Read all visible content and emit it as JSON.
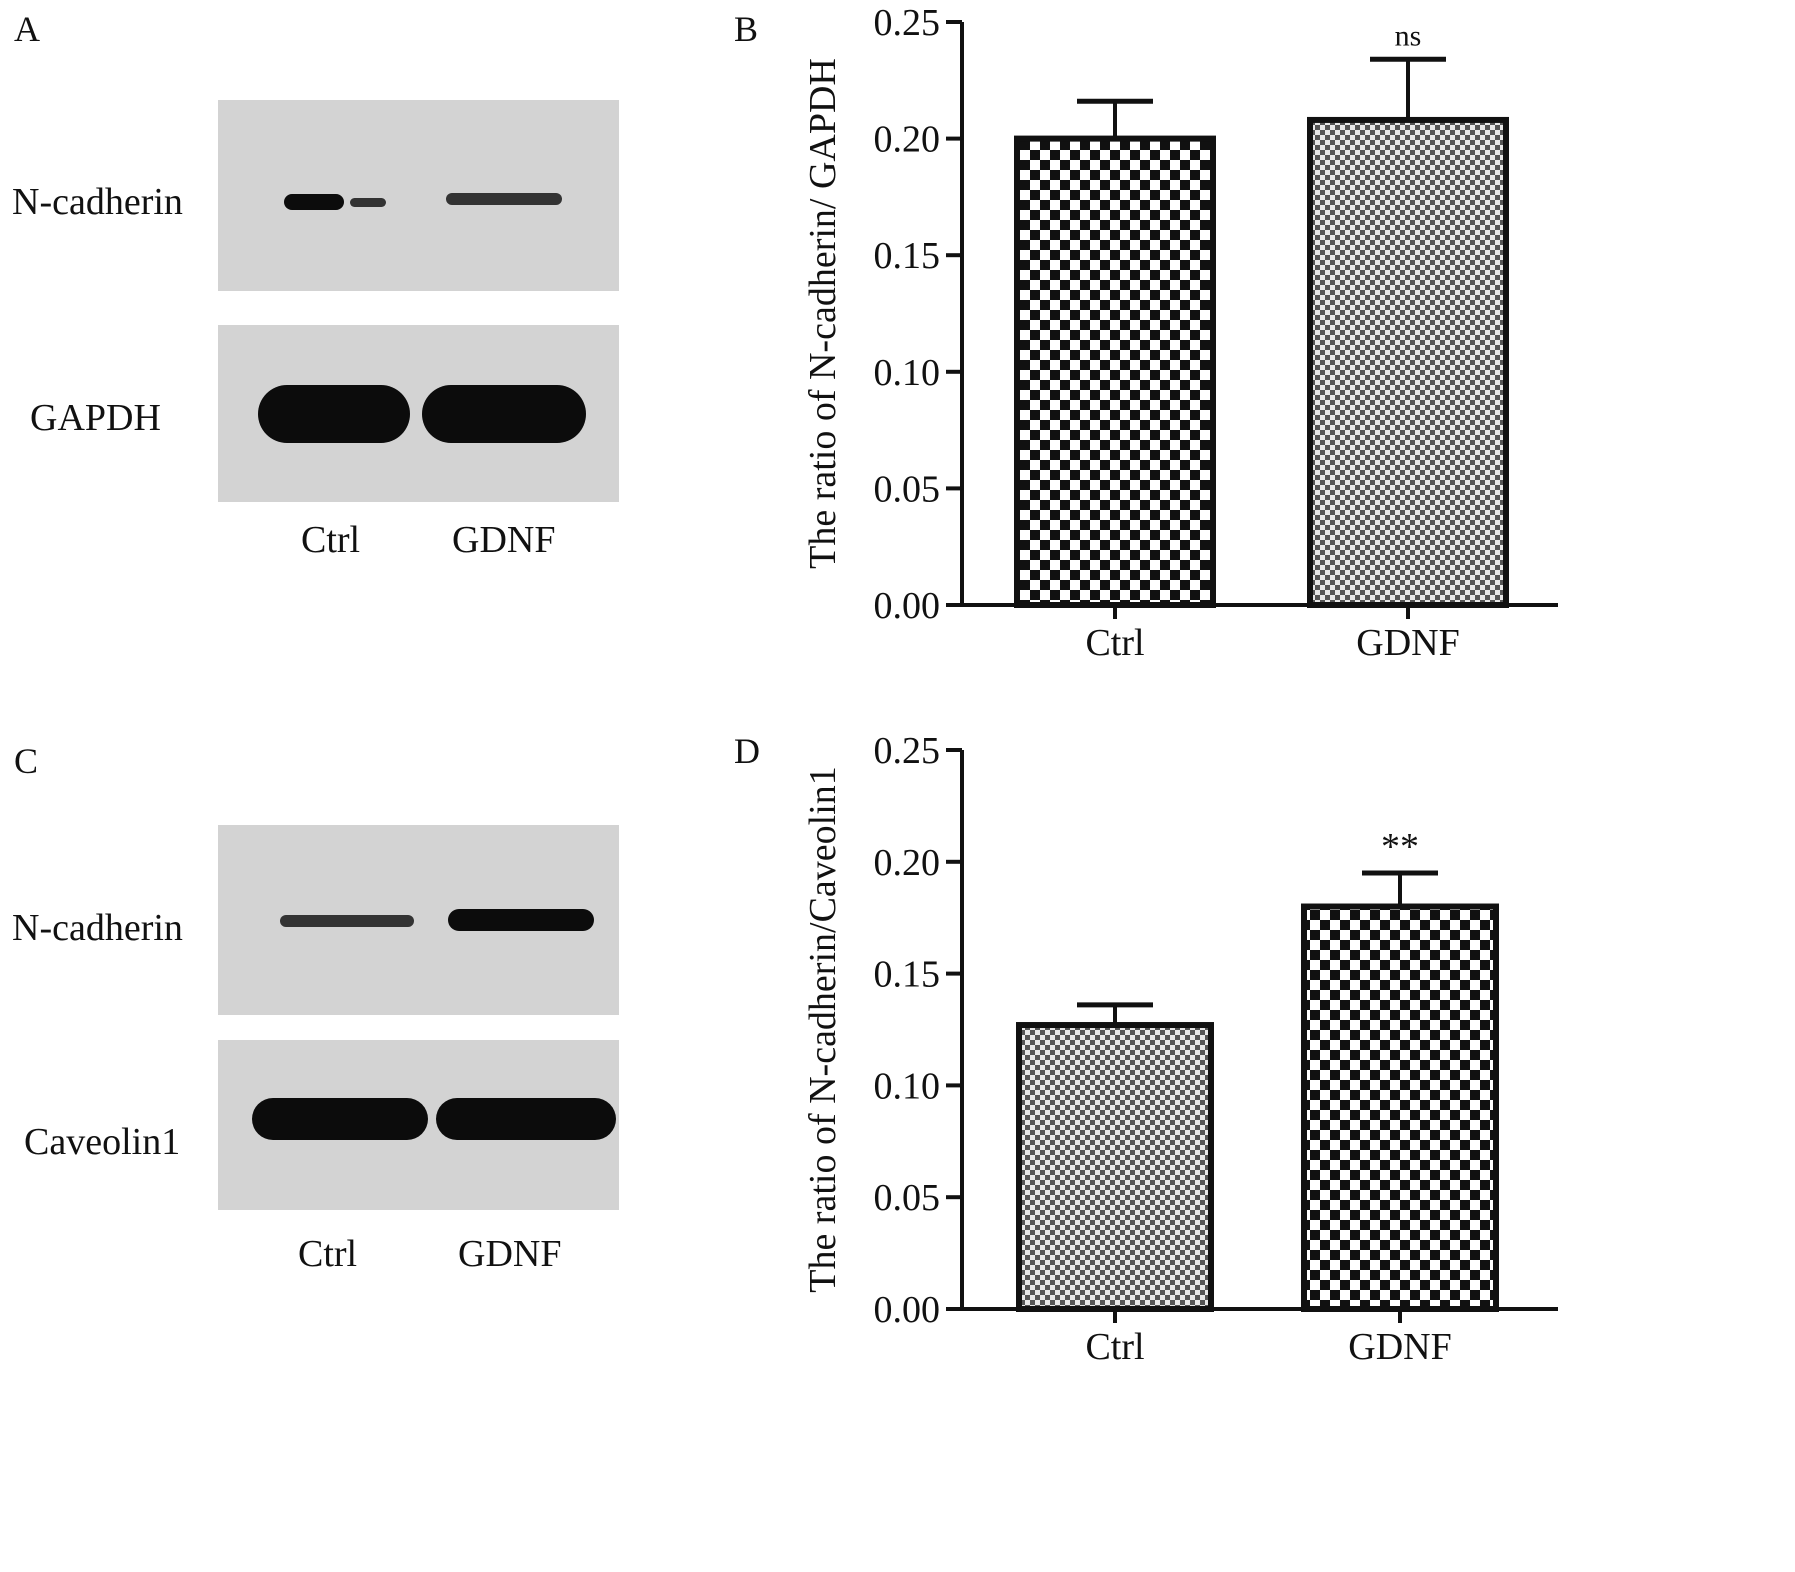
{
  "panels": {
    "A": {
      "letter": "A",
      "blot_labels": [
        "N-cadherin",
        "GAPDH"
      ],
      "lanes": [
        "Ctrl",
        "GDNF"
      ]
    },
    "C": {
      "letter": "C",
      "blot_labels": [
        "N-cadherin",
        "Caveolin1"
      ],
      "lanes": [
        "Ctrl",
        "GDNF"
      ]
    }
  },
  "chart_data": [
    {
      "panel": "B",
      "type": "bar",
      "ylabel": "The ratio of N-cadherin/ GAPDH",
      "xlabel": "",
      "categories": [
        "Ctrl",
        "GDNF"
      ],
      "values": [
        0.2,
        0.208
      ],
      "errors": [
        0.016,
        0.026
      ],
      "significance": [
        "",
        "ns"
      ],
      "patterns": [
        "coarse-checker",
        "fine-checker"
      ],
      "ylim": [
        0,
        0.25
      ],
      "yticks": [
        "0.00",
        "0.05",
        "0.10",
        "0.15",
        "0.20",
        "0.25"
      ],
      "grid": false,
      "legend": "none"
    },
    {
      "panel": "D",
      "type": "bar",
      "ylabel": "The ratio of N-cadherin/Caveolin1",
      "xlabel": "",
      "categories": [
        "Ctrl",
        "GDNF"
      ],
      "values": [
        0.127,
        0.18
      ],
      "errors": [
        0.009,
        0.015
      ],
      "significance": [
        "",
        "**"
      ],
      "patterns": [
        "fine-checker",
        "coarse-checker"
      ],
      "ylim": [
        0,
        0.25
      ],
      "yticks": [
        "0.00",
        "0.05",
        "0.10",
        "0.15",
        "0.20",
        "0.25"
      ],
      "grid": false,
      "legend": "none"
    }
  ]
}
